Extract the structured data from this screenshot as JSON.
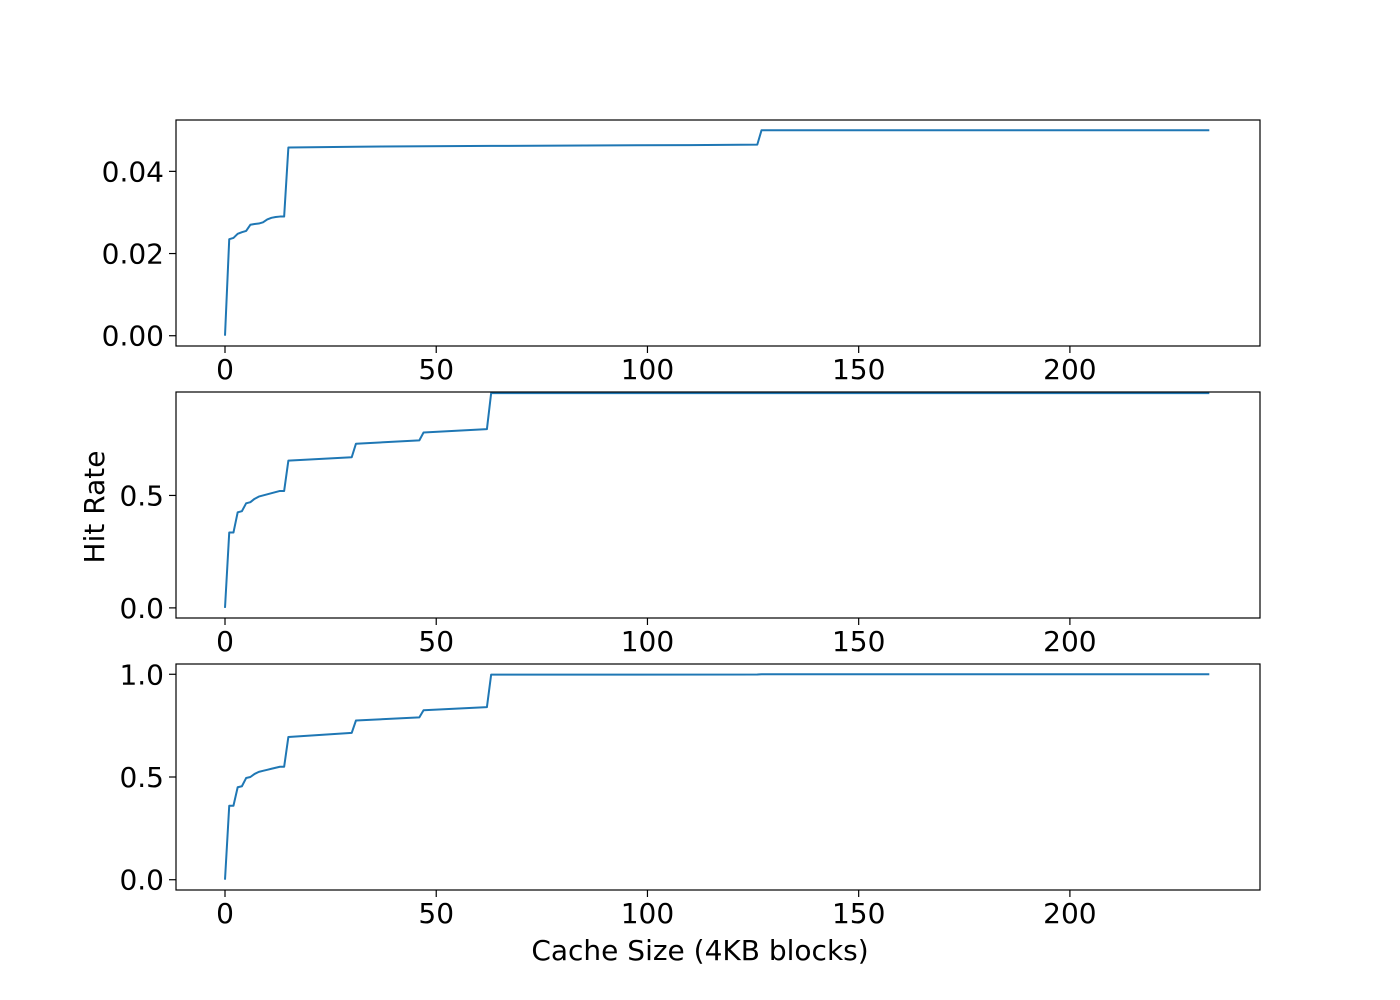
{
  "chart_data": {
    "type": "line",
    "xlabel": "Cache Size (4KB blocks)",
    "ylabel": "Hit Rate",
    "line_color": "#1f77b4",
    "grid": false,
    "panels": [
      {
        "id": "top",
        "xlim": [
          -11.6,
          245
        ],
        "ylim": [
          -0.0025,
          0.0525
        ],
        "xticks": [
          0,
          50,
          100,
          150,
          200
        ],
        "xtick_labels": [
          "0",
          "50",
          "100",
          "150",
          "200"
        ],
        "yticks": [
          0,
          0.02,
          0.04
        ],
        "ytick_labels": [
          "0.00",
          "0.02",
          "0.04"
        ],
        "series": [
          {
            "x": [
              0,
              1,
              2,
              3,
              4,
              5,
              6,
              7,
              8,
              9,
              10,
              11,
              12,
              13,
              14,
              15,
              31,
              63,
              110,
              126,
              127,
              233
            ],
            "y": [
              0,
              0.0235,
              0.0238,
              0.0248,
              0.0252,
              0.0255,
              0.027,
              0.0272,
              0.0273,
              0.0276,
              0.0283,
              0.0287,
              0.0289,
              0.029,
              0.029,
              0.0458,
              0.046,
              0.0462,
              0.0464,
              0.0465,
              0.05,
              0.05
            ]
          }
        ]
      },
      {
        "id": "middle",
        "xlim": [
          -11.6,
          245
        ],
        "ylim": [
          -0.045,
          0.96
        ],
        "xticks": [
          0,
          50,
          100,
          150,
          200
        ],
        "xtick_labels": [
          "0",
          "50",
          "100",
          "150",
          "200"
        ],
        "yticks": [
          0,
          0.5
        ],
        "ytick_labels": [
          "0.0",
          "0.5"
        ],
        "series": [
          {
            "x": [
              0,
              1,
              2,
              3,
              4,
              5,
              6,
              7,
              8,
              9,
              10,
              11,
              12,
              13,
              14,
              15,
              30,
              31,
              46,
              47,
              62,
              63,
              233
            ],
            "y": [
              0,
              0.335,
              0.335,
              0.425,
              0.43,
              0.465,
              0.47,
              0.485,
              0.495,
              0.5,
              0.505,
              0.51,
              0.515,
              0.52,
              0.52,
              0.655,
              0.67,
              0.73,
              0.745,
              0.78,
              0.795,
              0.955,
              0.955
            ]
          }
        ]
      },
      {
        "id": "bottom",
        "xlim": [
          -11.6,
          245
        ],
        "ylim": [
          -0.05,
          1.05
        ],
        "xticks": [
          0,
          50,
          100,
          150,
          200
        ],
        "xtick_labels": [
          "0",
          "50",
          "100",
          "150",
          "200"
        ],
        "yticks": [
          0,
          0.5,
          1.0
        ],
        "ytick_labels": [
          "0.0",
          "0.5",
          "1.0"
        ],
        "series": [
          {
            "x": [
              0,
              1,
              2,
              3,
              4,
              5,
              6,
              7,
              8,
              9,
              10,
              11,
              12,
              13,
              14,
              15,
              30,
              31,
              46,
              47,
              62,
              63,
              126,
              127,
              233
            ],
            "y": [
              0,
              0.36,
              0.36,
              0.45,
              0.455,
              0.495,
              0.5,
              0.515,
              0.525,
              0.53,
              0.535,
              0.54,
              0.545,
              0.55,
              0.55,
              0.695,
              0.715,
              0.775,
              0.79,
              0.825,
              0.84,
              0.998,
              0.999,
              1.0,
              1.0
            ]
          }
        ]
      }
    ]
  }
}
